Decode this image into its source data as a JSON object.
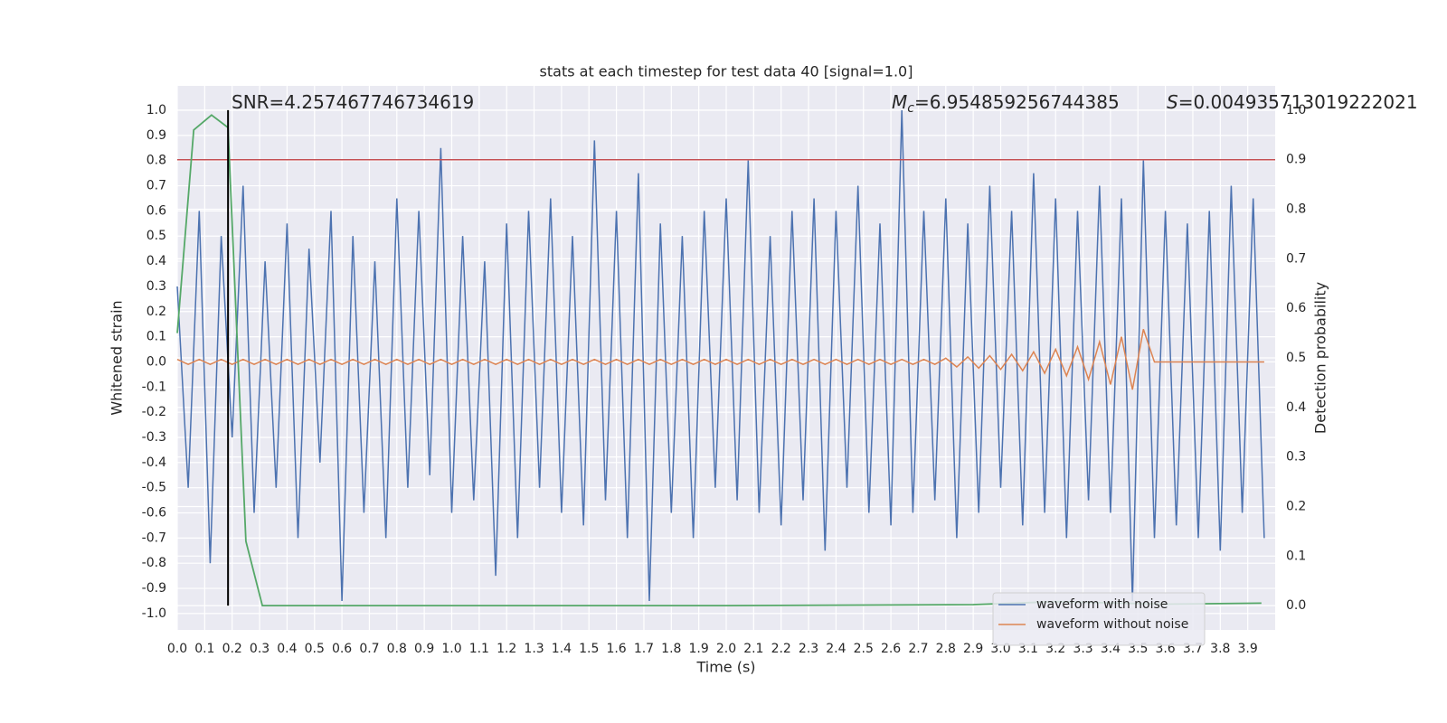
{
  "chart_data": {
    "type": "line",
    "title": "stats at each timestep for test data 40 [signal=1.0]",
    "xlabel": "Time (s)",
    "ylabel": "Whitened strain",
    "y2label": "Detection probability",
    "annotations": [
      {
        "text": "SNR=4.257467746734619"
      },
      {
        "symbol": "M",
        "subscript": "c",
        "text": "=6.954859256744385"
      },
      {
        "symbol": "S",
        "text": "=0.004935713019222021"
      }
    ],
    "x": [
      0,
      0.04,
      0.08,
      0.12,
      0.16,
      0.2,
      0.24,
      0.28,
      0.32,
      0.36,
      0.4,
      0.44,
      0.48,
      0.52,
      0.56,
      0.6,
      0.64,
      0.68,
      0.72,
      0.76,
      0.8,
      0.84,
      0.88,
      0.92,
      0.96,
      1.0,
      1.04,
      1.08,
      1.12,
      1.16,
      1.2,
      1.24,
      1.28,
      1.32,
      1.36,
      1.4,
      1.44,
      1.48,
      1.52,
      1.56,
      1.6,
      1.64,
      1.68,
      1.72,
      1.76,
      1.8,
      1.84,
      1.88,
      1.92,
      1.96,
      2.0,
      2.04,
      2.08,
      2.12,
      2.16,
      2.2,
      2.24,
      2.28,
      2.32,
      2.36,
      2.4,
      2.44,
      2.48,
      2.52,
      2.56,
      2.6,
      2.64,
      2.68,
      2.72,
      2.76,
      2.8,
      2.84,
      2.88,
      2.92,
      2.96,
      3.0,
      3.04,
      3.08,
      3.12,
      3.16,
      3.2,
      3.24,
      3.28,
      3.32,
      3.36,
      3.4,
      3.44,
      3.48,
      3.52,
      3.56,
      3.6,
      3.64,
      3.68,
      3.72,
      3.76,
      3.8,
      3.84,
      3.88,
      3.92,
      3.96
    ],
    "series": [
      {
        "name": "waveform with noise",
        "color": "#4c72b0",
        "legend": true,
        "values": [
          0.3,
          -0.5,
          0.6,
          -0.8,
          0.5,
          -0.3,
          0.7,
          -0.6,
          0.4,
          -0.5,
          0.55,
          -0.7,
          0.45,
          -0.4,
          0.6,
          -0.95,
          0.5,
          -0.6,
          0.4,
          -0.7,
          0.65,
          -0.5,
          0.6,
          -0.45,
          0.85,
          -0.6,
          0.5,
          -0.55,
          0.4,
          -0.85,
          0.55,
          -0.7,
          0.6,
          -0.5,
          0.65,
          -0.6,
          0.5,
          -0.65,
          0.88,
          -0.55,
          0.6,
          -0.7,
          0.75,
          -0.95,
          0.55,
          -0.6,
          0.5,
          -0.7,
          0.6,
          -0.5,
          0.65,
          -0.55,
          0.8,
          -0.6,
          0.5,
          -0.65,
          0.6,
          -0.55,
          0.65,
          -0.75,
          0.6,
          -0.5,
          0.7,
          -0.6,
          0.55,
          -0.65,
          1.0,
          -0.6,
          0.6,
          -0.55,
          0.65,
          -0.7,
          0.55,
          -0.6,
          0.7,
          -0.5,
          0.6,
          -0.65,
          0.75,
          -0.6,
          0.65,
          -0.7,
          0.6,
          -0.55,
          0.7,
          -0.6,
          0.65,
          -0.95,
          0.8,
          -0.7,
          0.6,
          -0.65,
          0.55,
          -0.7,
          0.6,
          -0.75,
          0.7,
          -0.6,
          0.65,
          -0.7
        ]
      },
      {
        "name": "waveform without noise",
        "color": "#dd8452",
        "legend": true,
        "values": [
          0.01,
          -0.01,
          0.01,
          -0.01,
          0.01,
          -0.01,
          0.01,
          -0.01,
          0.01,
          -0.01,
          0.01,
          -0.01,
          0.01,
          -0.01,
          0.01,
          -0.01,
          0.01,
          -0.01,
          0.01,
          -0.01,
          0.01,
          -0.01,
          0.01,
          -0.01,
          0.01,
          -0.01,
          0.01,
          -0.01,
          0.01,
          -0.01,
          0.01,
          -0.01,
          0.01,
          -0.01,
          0.01,
          -0.01,
          0.01,
          -0.01,
          0.01,
          -0.01,
          0.01,
          -0.01,
          0.01,
          -0.01,
          0.01,
          -0.01,
          0.01,
          -0.01,
          0.01,
          -0.01,
          0.01,
          -0.01,
          0.01,
          -0.01,
          0.01,
          -0.01,
          0.01,
          -0.01,
          0.01,
          -0.01,
          0.01,
          -0.01,
          0.01,
          -0.01,
          0.01,
          -0.01,
          0.01,
          -0.01,
          0.01,
          -0.01,
          0.015,
          -0.02,
          0.02,
          -0.025,
          0.025,
          -0.03,
          0.03,
          -0.035,
          0.04,
          -0.045,
          0.05,
          -0.055,
          0.06,
          -0.07,
          0.08,
          -0.09,
          0.1,
          -0.11,
          0.13,
          0,
          0,
          0,
          0,
          0,
          0,
          0,
          0,
          0,
          0,
          0
        ]
      },
      {
        "color": "#55a868",
        "axis": "y2",
        "legend": false,
        "x": [
          0,
          0.06,
          0.125,
          0.185,
          0.25,
          0.31,
          0.5,
          1.0,
          2.0,
          2.9,
          3.2,
          3.6,
          3.95
        ],
        "values": [
          0.55,
          0.96,
          0.99,
          0.965,
          0.13,
          0.0,
          0.0,
          0.0,
          0.0,
          0.002,
          0.008,
          0.003,
          0.005
        ]
      }
    ],
    "hline": {
      "y2": 0.9,
      "color": "#c44e52"
    },
    "vline": {
      "x": 0.185,
      "y2": [
        0,
        1
      ],
      "color": "#000000"
    },
    "xlim": [
      0,
      4.0
    ],
    "ylim": [
      -1.065,
      1.097
    ],
    "y2lim": [
      -0.049,
      1.049
    ],
    "xticks": [
      {
        "value": 0,
        "label": "0.0"
      },
      0.1,
      0.2,
      0.3,
      0.4,
      0.5,
      0.6,
      0.7,
      0.8,
      0.9,
      {
        "value": 1,
        "label": "1.0"
      },
      1.1,
      1.2,
      1.3,
      1.4,
      1.5,
      1.6,
      1.7,
      1.8,
      1.9,
      {
        "value": 2,
        "label": "2.0"
      },
      2.1,
      2.2,
      2.3,
      2.4,
      2.5,
      2.6,
      2.7,
      2.8,
      2.9,
      {
        "value": 3,
        "label": "3.0"
      },
      3.1,
      3.2,
      3.3,
      3.4,
      3.5,
      3.6,
      3.7,
      3.8,
      3.9
    ],
    "yticks": [
      {
        "value": -1,
        "label": "-1.0"
      },
      -0.9,
      -0.8,
      -0.7,
      -0.6,
      -0.5,
      -0.4,
      -0.3,
      -0.2,
      -0.1,
      {
        "value": 0,
        "label": "0.0"
      },
      0.1,
      0.2,
      0.3,
      0.4,
      0.5,
      0.6,
      0.7,
      0.8,
      0.9,
      {
        "value": 1,
        "label": "1.0"
      }
    ],
    "y2ticks": [
      {
        "value": 0,
        "label": "0.0"
      },
      0.1,
      0.2,
      0.3,
      0.4,
      0.5,
      0.6,
      0.7,
      0.8,
      0.9,
      {
        "value": 1,
        "label": "1.0"
      }
    ],
    "grid": true,
    "legend_loc": "lower right"
  }
}
